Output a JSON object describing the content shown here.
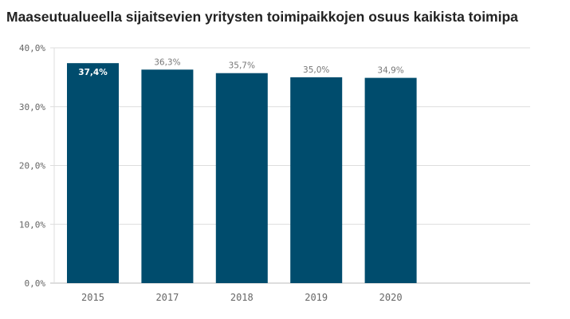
{
  "chart_data": {
    "type": "bar",
    "title": "Maaseutualueella sijaitsevien yritysten toimipaikkojen osuus kaikista toimipa",
    "categories": [
      "2015",
      "2017",
      "2018",
      "2019",
      "2020"
    ],
    "values": [
      37.4,
      36.3,
      35.7,
      35.0,
      34.9
    ],
    "data_labels": [
      "37,4%",
      "36,3%",
      "35,7%",
      "35,0%",
      "34,9%"
    ],
    "ylim": [
      0,
      40
    ],
    "yticks": [
      0,
      10,
      20,
      30,
      40
    ],
    "ytick_labels": [
      "0,0%",
      "10,0%",
      "20,0%",
      "30,0%",
      "40,0%"
    ],
    "grid": true,
    "bar_color": "#004c6d",
    "xlabel": "",
    "ylabel": ""
  }
}
